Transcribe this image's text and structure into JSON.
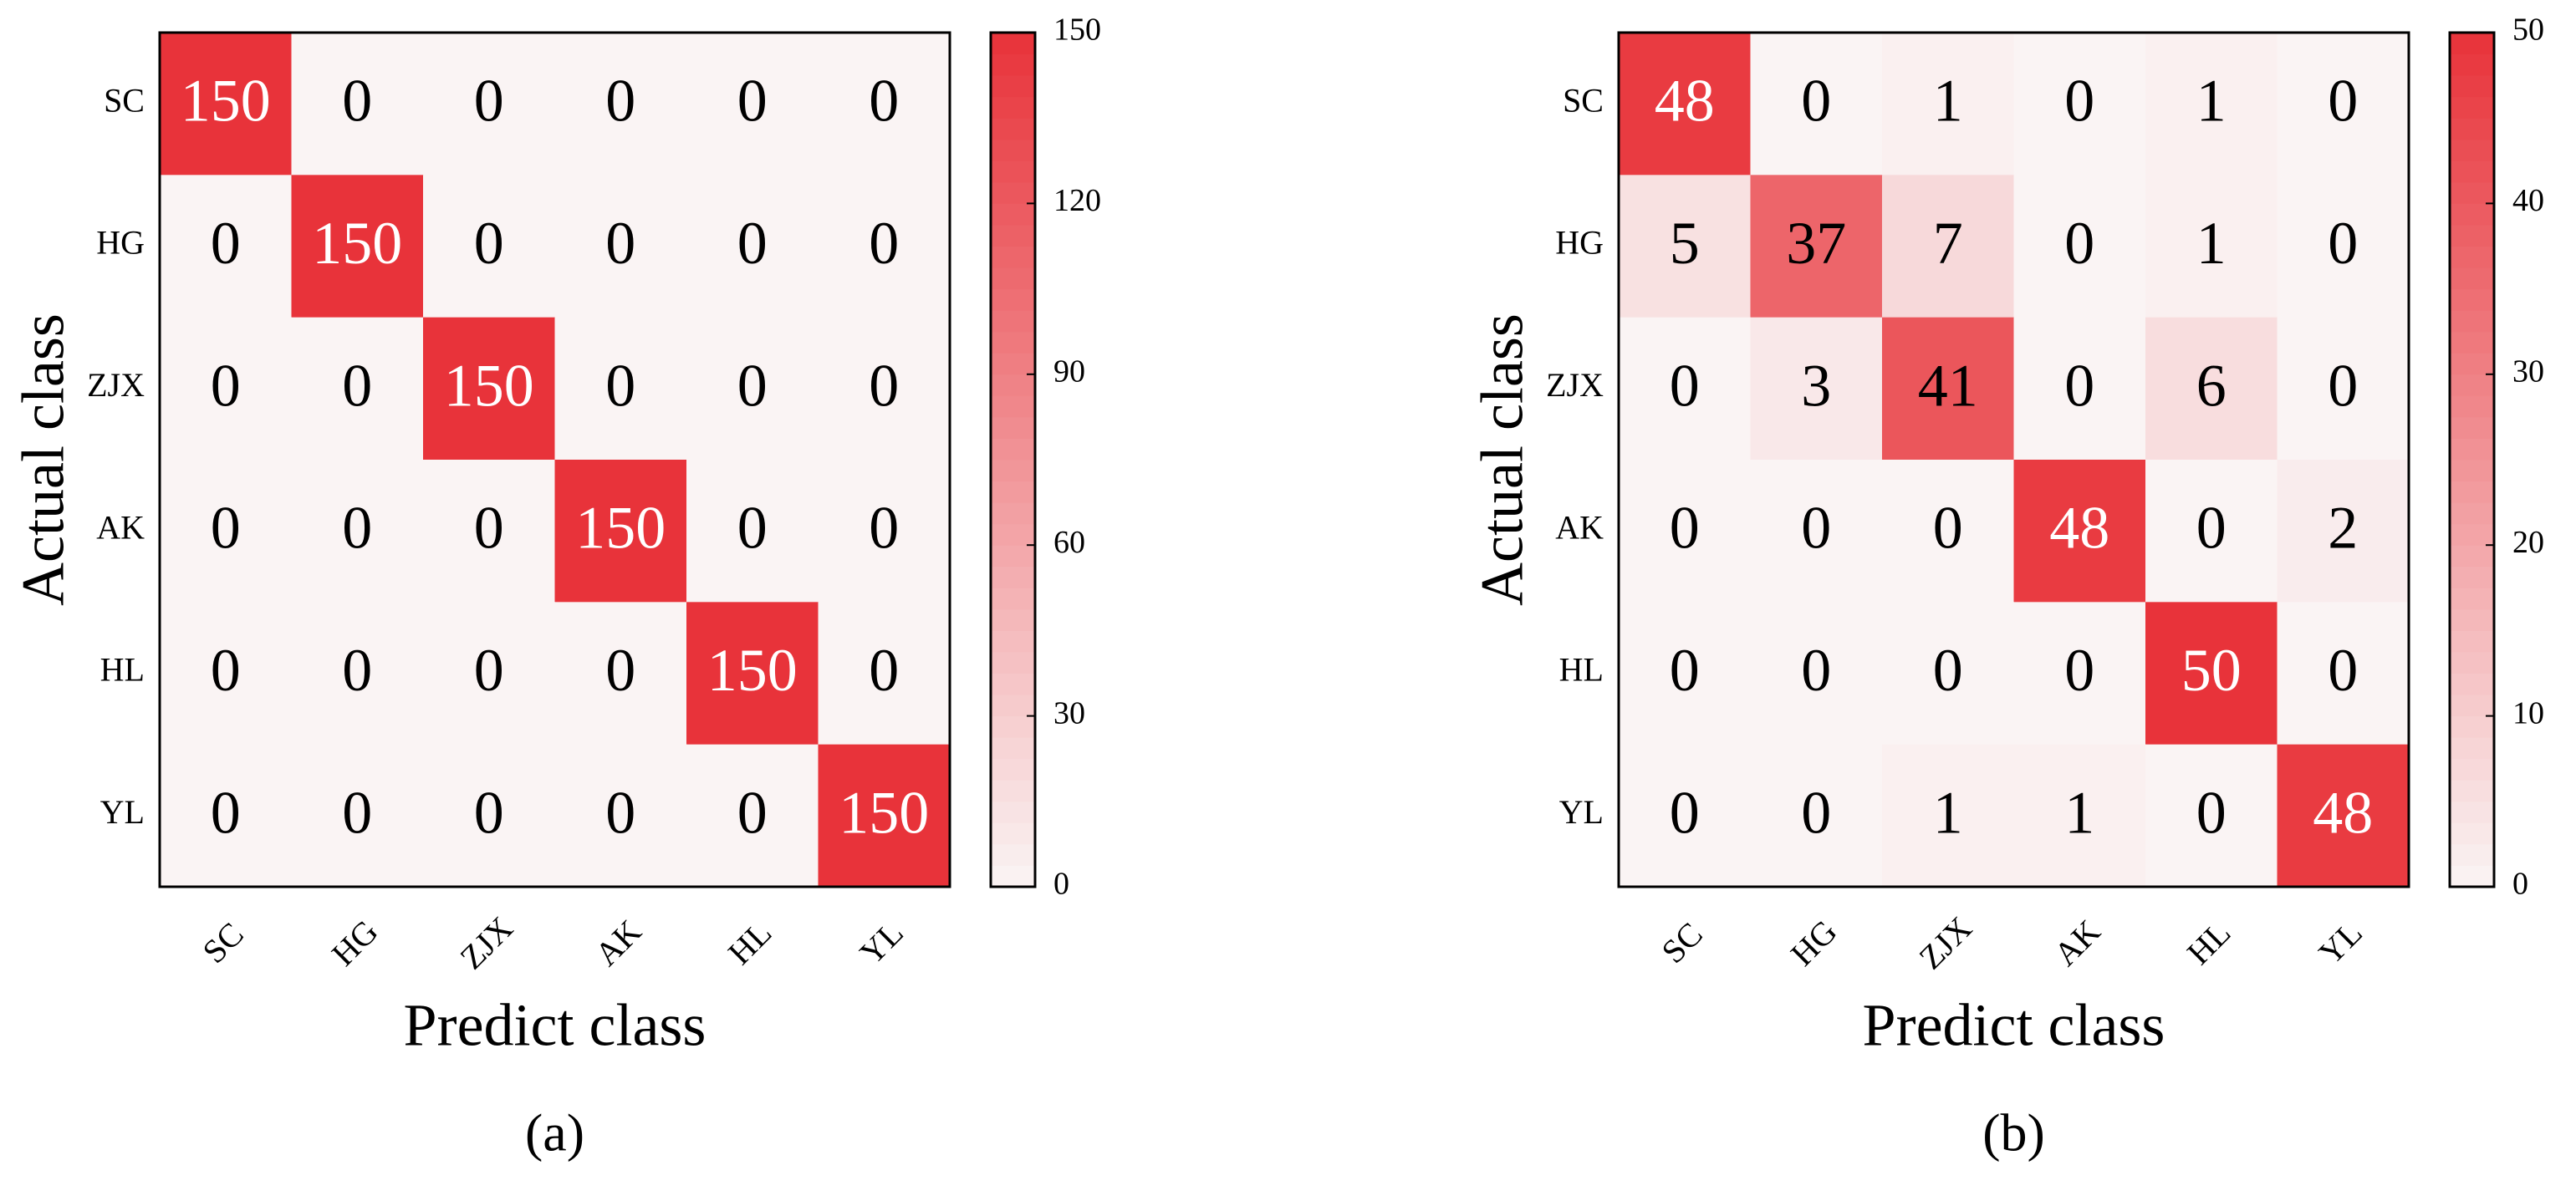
{
  "chart_data": [
    {
      "type": "heatmap",
      "xlabel": "Predict class",
      "ylabel": "Actual class",
      "caption": "(a)",
      "x_categories": [
        "SC",
        "HG",
        "ZJX",
        "AK",
        "HL",
        "YL"
      ],
      "y_categories": [
        "SC",
        "HG",
        "ZJX",
        "AK",
        "HL",
        "YL"
      ],
      "values": [
        [
          150,
          0,
          0,
          0,
          0,
          0
        ],
        [
          0,
          150,
          0,
          0,
          0,
          0
        ],
        [
          0,
          0,
          150,
          0,
          0,
          0
        ],
        [
          0,
          0,
          0,
          150,
          0,
          0
        ],
        [
          0,
          0,
          0,
          0,
          150,
          0
        ],
        [
          0,
          0,
          0,
          0,
          0,
          150
        ]
      ],
      "zlim": [
        0,
        150
      ],
      "zticks": [
        0,
        30,
        60,
        90,
        120,
        150
      ],
      "colors": [
        "#faf4f4",
        "#e8333a"
      ]
    },
    {
      "type": "heatmap",
      "xlabel": "Predict class",
      "ylabel": "Actual class",
      "caption": "(b)",
      "x_categories": [
        "SC",
        "HG",
        "ZJX",
        "AK",
        "HL",
        "YL"
      ],
      "y_categories": [
        "SC",
        "HG",
        "ZJX",
        "AK",
        "HL",
        "YL"
      ],
      "values": [
        [
          48,
          0,
          1,
          0,
          1,
          0
        ],
        [
          5,
          37,
          7,
          0,
          1,
          0
        ],
        [
          0,
          3,
          41,
          0,
          6,
          0
        ],
        [
          0,
          0,
          0,
          48,
          0,
          2
        ],
        [
          0,
          0,
          0,
          0,
          50,
          0
        ],
        [
          0,
          0,
          1,
          1,
          0,
          48
        ]
      ],
      "zlim": [
        0,
        50
      ],
      "zticks": [
        0,
        10,
        20,
        30,
        40,
        50
      ],
      "colors": [
        "#faf4f4",
        "#e8333a"
      ]
    }
  ]
}
